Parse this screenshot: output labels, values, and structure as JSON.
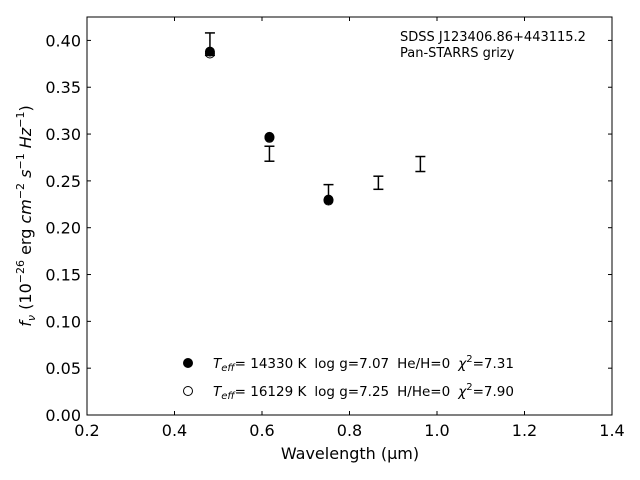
{
  "chart_data": {
    "type": "scatter",
    "xlabel": "Wavelength (μm)",
    "ylabel": "f_ν (10^-26 erg cm^-2 s^-1 Hz^-1)",
    "xlim": [
      0.2,
      1.4
    ],
    "ylim": [
      0.0,
      0.425
    ],
    "xticks": [
      "0.2",
      "0.4",
      "0.6",
      "0.8",
      "1.0",
      "1.2",
      "1.4"
    ],
    "yticks": [
      "0.00",
      "0.05",
      "0.10",
      "0.15",
      "0.20",
      "0.25",
      "0.30",
      "0.35",
      "0.40"
    ],
    "annotation": [
      "SDSS J123406.86+443115.2",
      "Pan-STARRS grizy"
    ],
    "observed": [
      {
        "x": 0.481,
        "y": 0.396,
        "err": 0.012
      },
      {
        "x": 0.617,
        "y": 0.279,
        "err": 0.008
      },
      {
        "x": 0.752,
        "y": 0.238,
        "err": 0.008
      },
      {
        "x": 0.866,
        "y": 0.248,
        "err": 0.007
      },
      {
        "x": 0.962,
        "y": 0.268,
        "err": 0.008
      }
    ],
    "series": [
      {
        "name": "T_eff= 14330 K  log g=7.07  He/H=0  χ²=7.31",
        "marker": "filled-circle",
        "x": [
          0.481,
          0.617,
          0.752
        ],
        "y": [
          0.388,
          0.297,
          0.23
        ]
      },
      {
        "name": "T_eff= 16129 K  log g=7.25  H/He=0  χ²=7.90",
        "marker": "open-circle",
        "x": [
          0.481,
          0.617,
          0.752
        ],
        "y": [
          0.386,
          0.296,
          0.229
        ]
      }
    ],
    "legend": {
      "placement": "lower-center",
      "entries": [
        {
          "teff": "= 14330 K",
          "logg": "log g=7.07",
          "comp": "He/H=0",
          "chi": "=7.31"
        },
        {
          "teff": "= 16129 K",
          "logg": "log g=7.25",
          "comp": "H/He=0",
          "chi": "=7.90"
        }
      ]
    }
  }
}
